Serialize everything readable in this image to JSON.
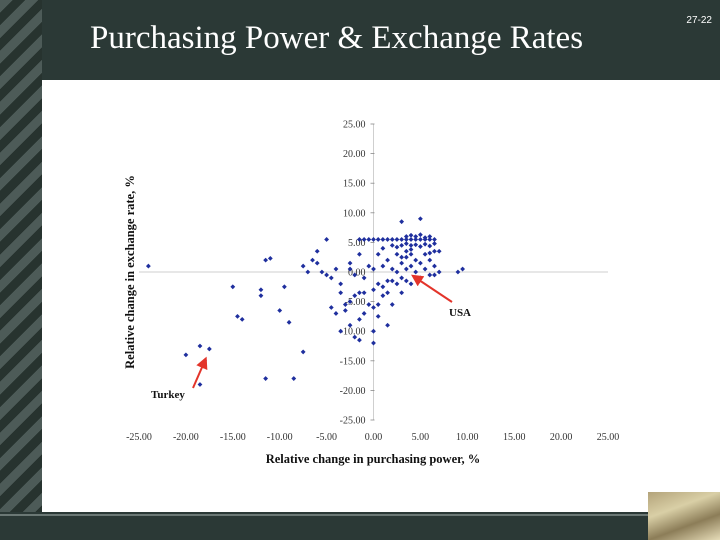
{
  "slide": {
    "title": "Purchasing Power & Exchange Rates",
    "page_number": "27-22"
  },
  "colors": {
    "point": "#1f2f9e",
    "arrow": "#e3342a",
    "axis": "#cfcfcf"
  },
  "chart_data": {
    "type": "scatter",
    "xlabel": "Relative change in purchasing power, %",
    "ylabel": "Relative change in exchange rate, %",
    "xlim": [
      -25,
      25
    ],
    "ylim": [
      -25,
      25
    ],
    "x_ticks": [
      "-25.00",
      "-20.00",
      "-15.00",
      "-10.00",
      "-5.00",
      "0.00",
      "5.00",
      "10.00",
      "15.00",
      "20.00",
      "25.00"
    ],
    "y_ticks": [
      "25.00",
      "20.00",
      "15.00",
      "10.00",
      "5.00",
      "0.00",
      "-5.00",
      "-10.00",
      "-15.00",
      "-20.00",
      "-25.00"
    ],
    "annotations": [
      {
        "text": "USA",
        "point": [
          4,
          0
        ]
      },
      {
        "text": "Turkey",
        "point": [
          -18,
          -14
        ]
      }
    ],
    "points": [
      [
        -24,
        1
      ],
      [
        -20,
        -14
      ],
      [
        -18.5,
        -19
      ],
      [
        -18.5,
        -12.5
      ],
      [
        -18,
        -15
      ],
      [
        -17.5,
        -13
      ],
      [
        -15,
        -2.5
      ],
      [
        -14.5,
        -7.5
      ],
      [
        -14,
        -8
      ],
      [
        -12,
        -3
      ],
      [
        -12,
        -4
      ],
      [
        -11.5,
        -18
      ],
      [
        -11.5,
        2
      ],
      [
        -11,
        2.3
      ],
      [
        -10,
        -6.5
      ],
      [
        -9.5,
        -2.5
      ],
      [
        -9,
        -8.5
      ],
      [
        -8.5,
        -18
      ],
      [
        -7.5,
        -13.5
      ],
      [
        -7.5,
        1
      ],
      [
        -7,
        0
      ],
      [
        -6.5,
        2
      ],
      [
        -6,
        3.5
      ],
      [
        -6,
        1.5
      ],
      [
        -5.5,
        0
      ],
      [
        -5,
        -0.5
      ],
      [
        -5,
        5.5
      ],
      [
        -4.5,
        -1
      ],
      [
        -4.5,
        -6
      ],
      [
        -4,
        -7
      ],
      [
        -4,
        0.5
      ],
      [
        -3.5,
        -2
      ],
      [
        -3.5,
        -3.5
      ],
      [
        -3,
        -5.5
      ],
      [
        -3,
        -6.5
      ],
      [
        -2.5,
        0.5
      ],
      [
        -2.5,
        1.5
      ],
      [
        -2.5,
        -5
      ],
      [
        -2,
        -4
      ],
      [
        -2,
        -11
      ],
      [
        -1.5,
        3
      ],
      [
        -1.5,
        -3.5
      ],
      [
        -1.5,
        -8
      ],
      [
        -1,
        -1
      ],
      [
        -1,
        -3.5
      ],
      [
        -1,
        -7
      ],
      [
        -0.5,
        1
      ],
      [
        -0.5,
        -5.5
      ],
      [
        0,
        0.5
      ],
      [
        0,
        -3
      ],
      [
        0,
        -6
      ],
      [
        0,
        -10
      ],
      [
        0.5,
        3
      ],
      [
        0.5,
        -2
      ],
      [
        0.5,
        -5.5
      ],
      [
        1,
        1
      ],
      [
        1,
        -2.5
      ],
      [
        1,
        -4
      ],
      [
        1.5,
        2
      ],
      [
        1.5,
        -1.5
      ],
      [
        1.5,
        -3.5
      ],
      [
        2,
        0.5
      ],
      [
        2,
        -1.5
      ],
      [
        2,
        -5.5
      ],
      [
        2.5,
        3
      ],
      [
        2.5,
        0
      ],
      [
        2.5,
        -2
      ],
      [
        3,
        1.5
      ],
      [
        3,
        -1
      ],
      [
        3,
        -3.5
      ],
      [
        3.5,
        2.5
      ],
      [
        3.5,
        0.5
      ],
      [
        3.5,
        -1.5
      ],
      [
        4,
        3
      ],
      [
        4,
        1
      ],
      [
        4,
        -2
      ],
      [
        4.5,
        2
      ],
      [
        4.5,
        0
      ],
      [
        5,
        1.5
      ],
      [
        5,
        -1
      ],
      [
        5.5,
        3
      ],
      [
        5.5,
        0.5
      ],
      [
        6,
        2
      ],
      [
        6,
        -0.5
      ],
      [
        6.5,
        1
      ],
      [
        7,
        0
      ],
      [
        -1.5,
        5.5
      ],
      [
        -1,
        5.5
      ],
      [
        -0.5,
        5.5
      ],
      [
        0,
        5.5
      ],
      [
        0.5,
        5.5
      ],
      [
        1,
        5.5
      ],
      [
        1.5,
        5.5
      ],
      [
        2,
        5.5
      ],
      [
        2.5,
        5.5
      ],
      [
        3,
        5.5
      ],
      [
        3.5,
        5.5
      ],
      [
        4,
        5.5
      ],
      [
        4.5,
        5.5
      ],
      [
        5,
        5.5
      ],
      [
        5.5,
        5.5
      ],
      [
        6,
        5.5
      ],
      [
        6.5,
        5.5
      ],
      [
        3.5,
        6
      ],
      [
        4,
        6.2
      ],
      [
        4.5,
        6
      ],
      [
        5,
        6.3
      ],
      [
        5.5,
        5.8
      ],
      [
        6,
        6
      ],
      [
        3,
        4.5
      ],
      [
        3.5,
        4.8
      ],
      [
        4,
        4.5
      ],
      [
        4.5,
        4.6
      ],
      [
        5,
        4.3
      ],
      [
        5.5,
        4.7
      ],
      [
        6,
        4.4
      ],
      [
        6.5,
        4.8
      ],
      [
        1,
        4
      ],
      [
        2,
        4.5
      ],
      [
        2.5,
        4.2
      ],
      [
        3,
        8.5
      ],
      [
        5,
        9
      ],
      [
        6.5,
        3.5
      ],
      [
        3,
        2.5
      ],
      [
        3.5,
        3.5
      ],
      [
        4,
        3.8
      ],
      [
        6,
        3.2
      ],
      [
        7,
        3.5
      ],
      [
        0.5,
        -7.5
      ],
      [
        0,
        -12
      ],
      [
        -1.5,
        -11.5
      ],
      [
        -2.5,
        -9
      ],
      [
        -3.5,
        -10
      ],
      [
        9,
        0
      ],
      [
        9.5,
        0.5
      ],
      [
        1.5,
        -9
      ],
      [
        -2,
        -0.5
      ],
      [
        6.5,
        -0.5
      ]
    ]
  }
}
